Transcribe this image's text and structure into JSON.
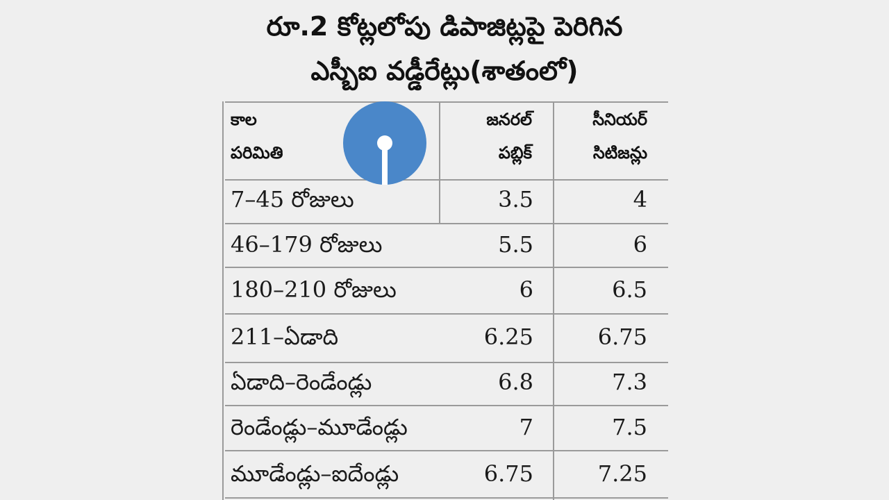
{
  "title": {
    "line1": "రూ.2 కోట్లలోపు డిపాజిట్లపై పెరిగిన",
    "line2": "ఎస్బీఐ వడ్డీరేట్లు(శాతంలో)"
  },
  "logo": {
    "icon": "sbi-logo-icon",
    "color": "#4a87c9"
  },
  "table": {
    "headers": {
      "period_line1": "కాల",
      "period_line2": "పరిమితి",
      "general_line1": "జనరల్",
      "general_line2": "పబ్లిక్",
      "senior_line1": "సీనియర్",
      "senior_line2": "సిటిజన్లు"
    },
    "rows": [
      {
        "period": "7–45 రోజులు",
        "general": "3.5",
        "senior": "4"
      },
      {
        "period": "46–179 రోజులు",
        "general": "5.5",
        "senior": "6"
      },
      {
        "period": "180–210 రోజులు",
        "general": "6",
        "senior": "6.5"
      },
      {
        "period": "211–ఏడాది",
        "general": "6.25",
        "senior": "6.75"
      },
      {
        "period": "ఏడాది–రెండేండ్లు",
        "general": "6.8",
        "senior": "7.3"
      },
      {
        "period": "రెండేండ్లు–మూడేండ్లు",
        "general": "7",
        "senior": "7.5"
      },
      {
        "period": "మూడేండ్లు–ఐదేండ్లు",
        "general": "6.75",
        "senior": "7.25"
      }
    ]
  }
}
